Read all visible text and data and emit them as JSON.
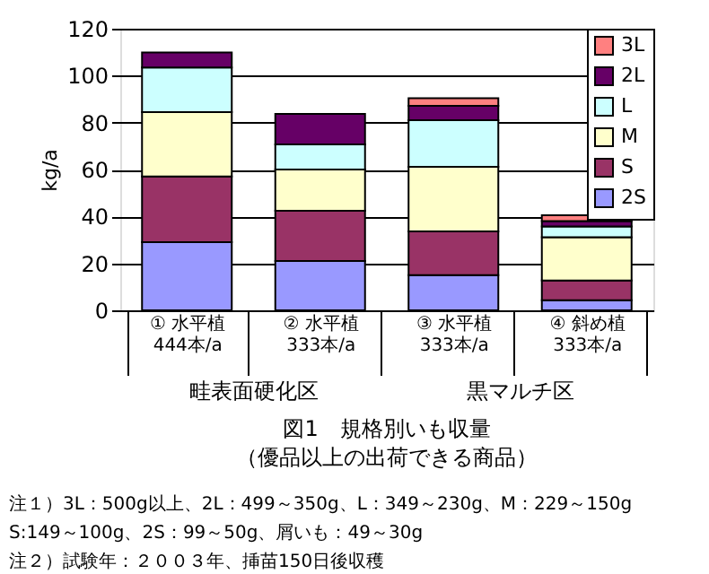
{
  "chart_data": {
    "type": "bar",
    "stacked": true,
    "title": "図1　規格別いも収量",
    "subtitle": "（優品以上の出荷できる商品）",
    "ylabel": "kg/a",
    "categories": [
      "① 水平植\n444本/a",
      "② 水平植\n333本/a",
      "③ 水平植\n333本/a",
      "④ 斜め植\n333本/a"
    ],
    "series": [
      {
        "name": "2S",
        "color": "#9999ff",
        "values": [
          29,
          21,
          15,
          4.3
        ]
      },
      {
        "name": "S",
        "color": "#993366",
        "values": [
          28,
          21.4,
          18.6,
          8.4
        ]
      },
      {
        "name": "M",
        "color": "#ffffcc",
        "values": [
          27.5,
          17.6,
          27.5,
          18.4
        ]
      },
      {
        "name": "L",
        "color": "#ccffff",
        "values": [
          19,
          10.7,
          19.9,
          4.6
        ]
      },
      {
        "name": "2L",
        "color": "#660066",
        "values": [
          6.4,
          13,
          6.1,
          2.3
        ]
      },
      {
        "name": "3L",
        "color": "#ff8080",
        "values": [
          0,
          0,
          3.3,
          2.5
        ]
      }
    ],
    "ylim": [
      0,
      120
    ],
    "yticks": [
      0,
      20,
      40,
      60,
      80,
      100,
      120
    ],
    "grid": "y",
    "legend": "top right",
    "annotations": [
      "畦表面硬化区",
      "黒マルチ区",
      "注１）3L：500g以上、2L：499～350g、L：349～230g、M：229～150g",
      "　　　S:149～100g、2S：99～50g、屑いも：49～30g",
      "注２）試験年：２００３年、挿苗150日後収穫"
    ]
  }
}
